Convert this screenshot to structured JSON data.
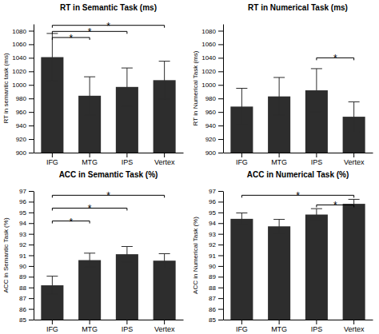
{
  "chart_data": [
    {
      "type": "bar",
      "title": "RT in Semantic Task (ms)",
      "ylabel": "RT in semantic task (ms)",
      "categories": [
        "IFG",
        "MTG",
        "IPS",
        "Vertex"
      ],
      "values": [
        1041,
        984,
        997,
        1007
      ],
      "errors": [
        35,
        28,
        28,
        28
      ],
      "color": "#2d2d2d",
      "ylim": [
        900,
        1090
      ],
      "yticks": [
        900,
        920,
        940,
        960,
        980,
        1000,
        1020,
        1040,
        1060,
        1080
      ],
      "annotations": [
        {
          "x1": "IFG",
          "x2": "MTG",
          "y": 1070,
          "label": "*"
        },
        {
          "x1": "IFG",
          "x2": "IPS",
          "y": 1079,
          "label": "*"
        },
        {
          "x1": "IFG",
          "x2": "Vertex",
          "y": 1088,
          "label": "*"
        }
      ]
    },
    {
      "type": "bar",
      "title": "RT in Numerical Task (ms)",
      "ylabel": "RT in Numerical Task (ms)",
      "categories": [
        "IFG",
        "MTG",
        "IPS",
        "Vertex"
      ],
      "values": [
        968,
        983,
        992,
        953
      ],
      "errors": [
        27,
        28,
        32,
        22
      ],
      "color": "#2d2d2d",
      "ylim": [
        900,
        1090
      ],
      "yticks": [
        900,
        920,
        940,
        960,
        980,
        1000,
        1020,
        1040,
        1060,
        1080
      ],
      "annotations": [
        {
          "x1": "IPS",
          "x2": "Vertex",
          "y": 1040,
          "label": "*"
        }
      ]
    },
    {
      "type": "bar",
      "title": "ACC in Semantic Task (%)",
      "ylabel": "ACC in Semantic Task (%)",
      "categories": [
        "IFG",
        "MTG",
        "IPS",
        "Vertex"
      ],
      "values": [
        88.2,
        90.55,
        91.1,
        90.5
      ],
      "errors": [
        0.85,
        0.65,
        0.72,
        0.65
      ],
      "color": "#2d2d2d",
      "ylim": [
        85,
        97
      ],
      "yticks": [
        85,
        86,
        87,
        88,
        89,
        90,
        91,
        92,
        93,
        94,
        95,
        96,
        97
      ],
      "annotations": [
        {
          "x1": "IFG",
          "x2": "MTG",
          "y": 94.2,
          "label": "*"
        },
        {
          "x1": "IFG",
          "x2": "IPS",
          "y": 95.4,
          "label": "*"
        },
        {
          "x1": "IFG",
          "x2": "Vertex",
          "y": 96.6,
          "label": "*"
        }
      ]
    },
    {
      "type": "bar",
      "title": "ACC in Numerical Task (%)",
      "ylabel": "ACC in Numerical Task (%)",
      "categories": [
        "IFG",
        "MTG",
        "IPS",
        "Vertex"
      ],
      "values": [
        94.4,
        93.7,
        94.8,
        95.8
      ],
      "errors": [
        0.55,
        0.65,
        0.55,
        0.42
      ],
      "color": "#2d2d2d",
      "ylim": [
        85,
        97
      ],
      "yticks": [
        85,
        86,
        87,
        88,
        89,
        90,
        91,
        92,
        93,
        94,
        95,
        96,
        97
      ],
      "annotations": [
        {
          "x1": "IFG",
          "x2": "Vertex",
          "y": 96.6,
          "label": "*"
        },
        {
          "x1": "IPS",
          "x2": "Vertex",
          "y": 95.7,
          "label": "*"
        }
      ]
    }
  ]
}
